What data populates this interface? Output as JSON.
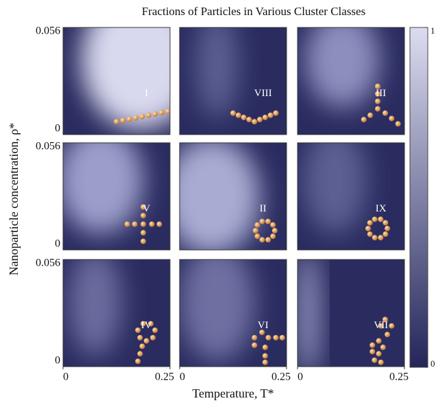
{
  "chart_data": {
    "type": "heatmap",
    "title": "Fractions of Particles in Various Cluster Classes",
    "xlabel": "Temperature, T*",
    "ylabel": "Nanoparticle concentration, ρ*",
    "xlim": [
      0,
      0.25
    ],
    "xticks": [
      0,
      0.25
    ],
    "ylim": [
      0,
      0.056
    ],
    "yticks": [
      0,
      0.056
    ],
    "clim": [
      0,
      1
    ],
    "cticks": [
      0,
      1
    ],
    "panels": [
      {
        "label": "I"
      },
      {
        "label": "VIII"
      },
      {
        "label": "III"
      },
      {
        "label": "V"
      },
      {
        "label": "II"
      },
      {
        "label": "IX"
      },
      {
        "label": "IV"
      },
      {
        "label": "VI"
      },
      {
        "label": "VII"
      }
    ]
  }
}
